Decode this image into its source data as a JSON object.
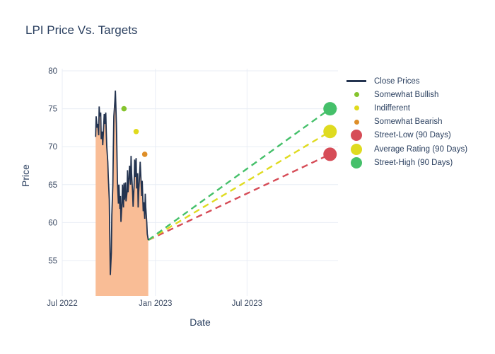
{
  "title": "LPI Price Vs. Targets",
  "colors": {
    "title_text": "#2a3f5f",
    "tick_text": "#3b4a63",
    "grid": "#e8edf5",
    "close_line": "#243450",
    "area_fill": "#f9bd96",
    "somewhat_bullish": "#85c42d",
    "indifferent": "#e0da1c",
    "somewhat_bearish": "#de8e28",
    "street_low": "#d64c57",
    "average_rating": "#dfdb20",
    "street_high": "#45c06a"
  },
  "chart_data": {
    "type": "line",
    "title": "LPI Price Vs. Targets",
    "xlabel": "Date",
    "ylabel": "Price",
    "grid": true,
    "legend_position": "right",
    "x_ticks": [
      {
        "label": "Jul 2022",
        "date": "2022-07-01"
      },
      {
        "label": "Jan 2023",
        "date": "2023-01-01"
      },
      {
        "label": "Jul 2023",
        "date": "2023-07-01"
      }
    ],
    "y_ticks": [
      55,
      60,
      65,
      70,
      75,
      80
    ],
    "ylim": [
      50.3,
      80.3
    ],
    "forecast_origin": {
      "date": "2022-12-11",
      "price": 57.7
    },
    "series": [
      {
        "name": "Close Prices",
        "type": "line",
        "color": "#243450",
        "fill": "#f9bd96",
        "x": [
          "2022-08-29",
          "2022-08-30",
          "2022-09-01",
          "2022-09-02",
          "2022-09-04",
          "2022-09-05",
          "2022-09-06",
          "2022-09-08",
          "2022-09-09",
          "2022-09-11",
          "2022-09-12",
          "2022-09-13",
          "2022-09-15",
          "2022-09-16",
          "2022-09-18",
          "2022-09-19",
          "2022-09-20",
          "2022-09-22",
          "2022-09-23",
          "2022-09-25",
          "2022-09-26",
          "2022-09-27",
          "2022-09-29",
          "2022-09-30",
          "2022-10-02",
          "2022-10-03",
          "2022-10-04",
          "2022-10-06",
          "2022-10-07",
          "2022-10-09",
          "2022-10-10",
          "2022-10-11",
          "2022-10-13",
          "2022-10-14",
          "2022-10-16",
          "2022-10-17",
          "2022-10-18",
          "2022-10-20",
          "2022-10-21",
          "2022-10-23",
          "2022-10-24",
          "2022-10-25",
          "2022-10-27",
          "2022-10-28",
          "2022-10-30",
          "2022-10-31",
          "2022-11-01",
          "2022-11-03",
          "2022-11-04",
          "2022-11-06",
          "2022-11-07",
          "2022-11-08",
          "2022-11-10",
          "2022-11-11",
          "2022-11-13",
          "2022-11-14",
          "2022-11-15",
          "2022-11-17",
          "2022-11-18",
          "2022-11-20",
          "2022-11-21",
          "2022-11-22",
          "2022-11-24",
          "2022-11-25",
          "2022-11-27",
          "2022-11-28",
          "2022-11-29",
          "2022-12-01",
          "2022-12-02",
          "2022-12-04",
          "2022-12-05",
          "2022-12-06",
          "2022-12-08",
          "2022-12-09",
          "2022-12-11"
        ],
        "y": [
          71.3,
          74.0,
          72.5,
          73.0,
          71.5,
          75.3,
          74.0,
          74.5,
          71.0,
          72.0,
          70.2,
          71.5,
          74.3,
          73.0,
          74.5,
          72.0,
          70.0,
          68.0,
          66.0,
          63.0,
          58.0,
          53.1,
          56.0,
          61.0,
          65.0,
          70.0,
          74.0,
          76.0,
          77.4,
          73.0,
          69.5,
          65.5,
          62.5,
          65.0,
          61.8,
          63.5,
          60.1,
          62.5,
          65.0,
          62.0,
          65.2,
          63.0,
          65.3,
          62.8,
          64.0,
          66.9,
          64.0,
          66.0,
          67.5,
          65.0,
          68.8,
          66.5,
          64.0,
          62.1,
          65.0,
          68.3,
          66.0,
          68.5,
          64.5,
          66.5,
          62.0,
          64.0,
          66.5,
          68.0,
          65.0,
          63.5,
          65.5,
          61.5,
          62.7,
          60.5,
          63.8,
          62.0,
          60.0,
          58.5,
          57.7
        ]
      },
      {
        "name": "Somewhat Bullish",
        "type": "scatter",
        "color": "#85c42d",
        "x": [
          "2022-10-24"
        ],
        "y": [
          75
        ]
      },
      {
        "name": "Indifferent",
        "type": "scatter",
        "color": "#e0da1c",
        "x": [
          "2022-11-17"
        ],
        "y": [
          72
        ]
      },
      {
        "name": "Somewhat Bearish",
        "type": "scatter",
        "color": "#de8e28",
        "x": [
          "2022-12-04"
        ],
        "y": [
          69
        ]
      },
      {
        "name": "Street-Low (90 Days)",
        "type": "target",
        "color": "#d64c57",
        "x": [
          "2023-12-05"
        ],
        "y": [
          69
        ]
      },
      {
        "name": "Average Rating (90 Days)",
        "type": "target",
        "color": "#dfdb20",
        "x": [
          "2023-12-05"
        ],
        "y": [
          72
        ]
      },
      {
        "name": "Street-High (90 Days)",
        "type": "target",
        "color": "#45c06a",
        "x": [
          "2023-12-05"
        ],
        "y": [
          75
        ]
      }
    ]
  },
  "legend": {
    "items": [
      {
        "label": "Close Prices",
        "symbol": "line",
        "color": "#243450"
      },
      {
        "label": "Somewhat Bullish",
        "symbol": "dot-small",
        "color": "#85c42d"
      },
      {
        "label": "Indifferent",
        "symbol": "dot-small",
        "color": "#e0da1c"
      },
      {
        "label": "Somewhat Bearish",
        "symbol": "dot-small",
        "color": "#de8e28"
      },
      {
        "label": "Street-Low (90 Days)",
        "symbol": "dot-large",
        "color": "#d64c57"
      },
      {
        "label": "Average Rating (90 Days)",
        "symbol": "dot-large",
        "color": "#dfdb20"
      },
      {
        "label": "Street-High (90 Days)",
        "symbol": "dot-large",
        "color": "#45c06a"
      }
    ]
  }
}
